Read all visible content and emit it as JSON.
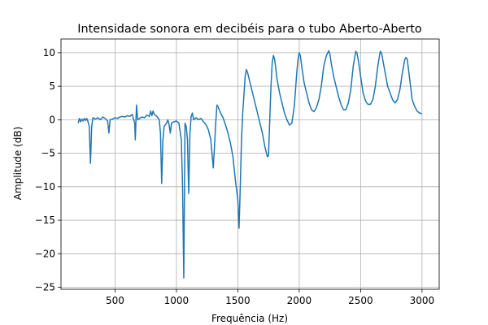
{
  "chart_data": {
    "type": "line",
    "title": "Intensidade sonora em decibéis para o tubo Aberto-Aberto",
    "xlabel": "Frequência (Hz)",
    "ylabel": "Amplitude (dB)",
    "x": [
      200,
      210,
      220,
      230,
      240,
      250,
      260,
      270,
      280,
      290,
      300,
      310,
      320,
      340,
      360,
      380,
      400,
      420,
      440,
      450,
      460,
      480,
      500,
      520,
      540,
      560,
      580,
      600,
      620,
      640,
      660,
      665,
      675,
      685,
      700,
      720,
      740,
      760,
      780,
      790,
      800,
      810,
      820,
      840,
      860,
      870,
      880,
      890,
      900,
      920,
      930,
      940,
      950,
      960,
      980,
      1000,
      1020,
      1040,
      1050,
      1060,
      1070,
      1080,
      1090,
      1100,
      1110,
      1120,
      1130,
      1140,
      1160,
      1180,
      1200,
      1220,
      1240,
      1260,
      1280,
      1300,
      1310,
      1320,
      1330,
      1340,
      1360,
      1380,
      1400,
      1420,
      1440,
      1460,
      1480,
      1500,
      1510,
      1520,
      1530,
      1540,
      1560,
      1570,
      1580,
      1600,
      1620,
      1640,
      1660,
      1680,
      1700,
      1720,
      1740,
      1750,
      1760,
      1770,
      1780,
      1790,
      1800,
      1820,
      1840,
      1860,
      1880,
      1900,
      1920,
      1940,
      1960,
      1980,
      1990,
      2000,
      2010,
      2020,
      2040,
      2060,
      2080,
      2100,
      2120,
      2140,
      2160,
      2180,
      2200,
      2220,
      2240,
      2250,
      2260,
      2280,
      2300,
      2320,
      2340,
      2360,
      2380,
      2400,
      2420,
      2440,
      2460,
      2470,
      2480,
      2500,
      2520,
      2540,
      2560,
      2580,
      2600,
      2620,
      2640,
      2660,
      2670,
      2680,
      2700,
      2720,
      2740,
      2760,
      2780,
      2800,
      2820,
      2840,
      2860,
      2870,
      2880,
      2900,
      2920,
      2940,
      2960,
      2980,
      3000
    ],
    "series": [
      {
        "name": "Amplitude",
        "color": "#1f77b4",
        "values": [
          -0.5,
          0.2,
          -0.3,
          0.1,
          -0.2,
          0.2,
          -0.1,
          0.2,
          -0.3,
          -1,
          -6.5,
          -1,
          0.3,
          0.1,
          0.3,
          0,
          0.4,
          0.2,
          -0.2,
          -2,
          0,
          0.1,
          0.3,
          0.2,
          0.4,
          0.5,
          0.4,
          0.6,
          0.5,
          0.8,
          -0.5,
          -3,
          2.2,
          0,
          0.2,
          0.4,
          0.3,
          0.7,
          0.5,
          1.3,
          0.6,
          1.3,
          0.8,
          0.5,
          0,
          -2,
          -9.5,
          -3,
          -1,
          -0.5,
          0,
          -0.7,
          -2,
          -0.5,
          -0.3,
          -0.2,
          -0.5,
          -3,
          -10,
          -23.6,
          -0.5,
          -1,
          -3,
          -11,
          -2,
          0.5,
          1,
          0,
          0.3,
          0,
          0.2,
          -0.3,
          -0.7,
          -1.5,
          -3,
          -7.2,
          -4,
          -0.5,
          2.2,
          1.9,
          1,
          0.3,
          -0.8,
          -2,
          -3.5,
          -5.5,
          -9,
          -12,
          -16.2,
          -10,
          -3,
          1,
          6.5,
          7.5,
          7,
          5.5,
          4,
          2.5,
          1,
          -0.5,
          -2,
          -4,
          -5.5,
          -5.4,
          0,
          5,
          8.5,
          9.6,
          9,
          6,
          4,
          2.5,
          1,
          0,
          -0.8,
          -0.5,
          2,
          7,
          9,
          10,
          9.5,
          8,
          5.5,
          4,
          2.5,
          1.5,
          1.2,
          1.8,
          3,
          5,
          8,
          9.5,
          10.3,
          9.8,
          8.5,
          6.5,
          5,
          3.5,
          2.3,
          1.5,
          1.5,
          2.5,
          4.5,
          8,
          10.2,
          10,
          9,
          6.5,
          4,
          2.8,
          2.3,
          2.3,
          3,
          5,
          8,
          10.2,
          10,
          9,
          7,
          5,
          4,
          3,
          2.5,
          3,
          4.5,
          7,
          9,
          9.3,
          9,
          6,
          3,
          2,
          1.3,
          1,
          0.9
        ]
      }
    ],
    "xlim": [
      60,
      3140
    ],
    "ylim": [
      -25.3,
      12.05
    ],
    "xticks": [
      500,
      1000,
      1500,
      2000,
      2500,
      3000
    ],
    "yticks": [
      {
        "value": -25,
        "label": "−25"
      },
      {
        "value": -20,
        "label": "−20"
      },
      {
        "value": -15,
        "label": "−15"
      },
      {
        "value": -10,
        "label": "−10"
      },
      {
        "value": -5,
        "label": "−5"
      },
      0,
      5,
      10
    ],
    "grid": true
  }
}
